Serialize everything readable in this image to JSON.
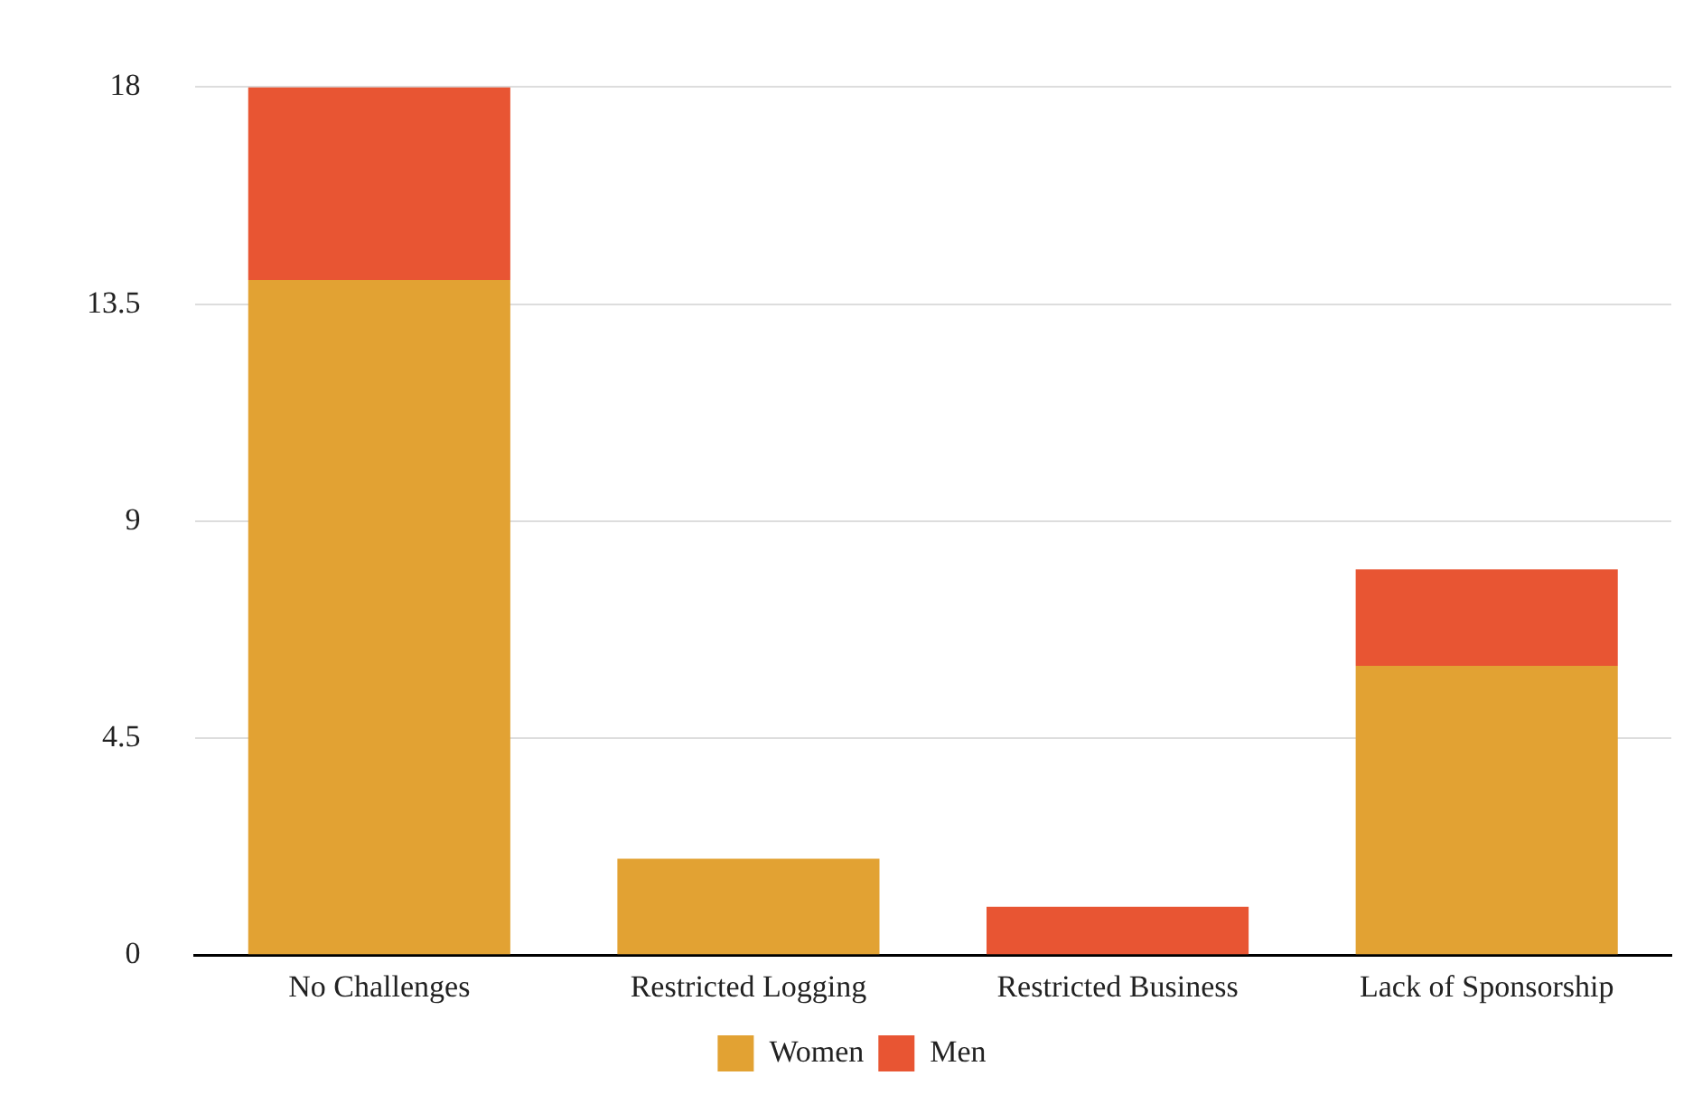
{
  "chart_data": {
    "type": "bar",
    "stacked": true,
    "categories": [
      "No Challenges",
      "Restricted Logging",
      "Restricted Business",
      "Lack of Sponsorship"
    ],
    "series": [
      {
        "name": "Women",
        "color": "#e2a233",
        "values": [
          14,
          2,
          0,
          6
        ]
      },
      {
        "name": "Men",
        "color": "#e85533",
        "values": [
          4,
          0,
          1,
          2
        ]
      }
    ],
    "ylim": [
      0,
      18
    ],
    "yticks": [
      0,
      4.5,
      9,
      13.5,
      18
    ],
    "grid": "y",
    "legend": "bottom"
  }
}
